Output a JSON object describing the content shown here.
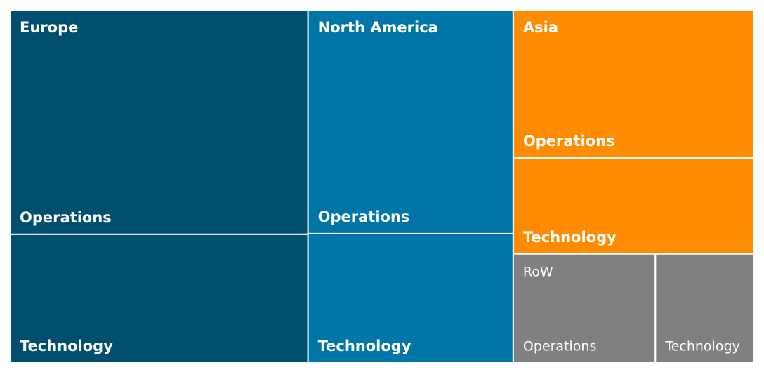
{
  "chart_data": {
    "type": "treemap",
    "groups": [
      {
        "name": "Europe",
        "color": "#004f6f",
        "children": [
          {
            "name": "Operations",
            "value": 25.5
          },
          {
            "name": "Technology",
            "value": 14.6
          }
        ]
      },
      {
        "name": "North America",
        "color": "#0076a8",
        "children": [
          {
            "name": "Operations",
            "value": 17.5
          },
          {
            "name": "Technology",
            "value": 10.1
          }
        ]
      },
      {
        "name": "Asia",
        "color": "#ff8c00",
        "children": [
          {
            "name": "Operations",
            "value": 13.6
          },
          {
            "name": "Technology",
            "value": 8.8
          }
        ]
      },
      {
        "name": "RoW",
        "color": "#808080",
        "children": [
          {
            "name": "Operations",
            "value": 5.9
          },
          {
            "name": "Technology",
            "value": 4.1
          }
        ]
      }
    ]
  }
}
